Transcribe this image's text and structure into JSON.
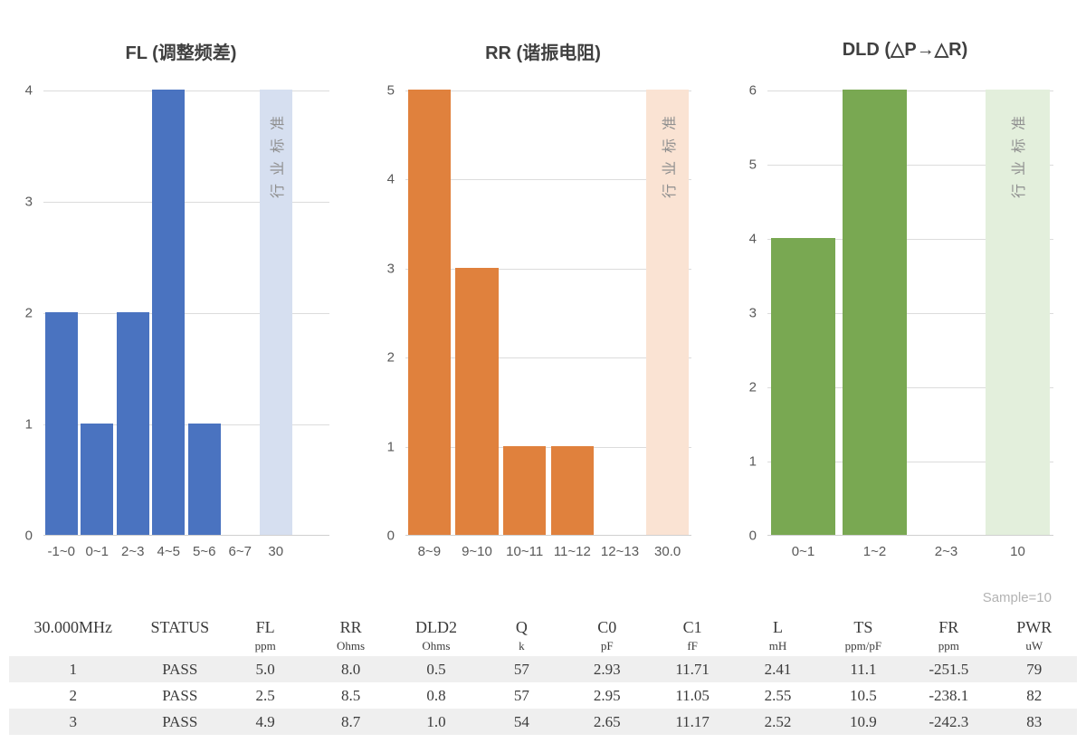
{
  "chart_data": [
    {
      "type": "bar",
      "title": "FL (调整频差)",
      "categories": [
        "-1~0",
        "0~1",
        "2~3",
        "4~5",
        "5~6",
        "6~7",
        "30"
      ],
      "values": [
        2,
        1,
        2,
        4,
        1,
        0,
        4
      ],
      "ylim": [
        0,
        4
      ],
      "ytick_step": 1,
      "grid": true,
      "legend": "none",
      "bar_color": "#4A73C0",
      "standard": {
        "index": 6,
        "label": "行业标准",
        "color": "#D6DFF0"
      },
      "extra_slots": 1
    },
    {
      "type": "bar",
      "title": "RR (谐振电阻)",
      "categories": [
        "8~9",
        "9~10",
        "10~11",
        "11~12",
        "12~13",
        "30.0"
      ],
      "values": [
        5,
        3,
        1,
        1,
        0,
        5
      ],
      "ylim": [
        0,
        5
      ],
      "ytick_step": 1,
      "grid": true,
      "legend": "none",
      "bar_color": "#E0813D",
      "standard": {
        "index": 5,
        "label": "行业标准",
        "color": "#FAE3D3"
      },
      "extra_slots": 0
    },
    {
      "type": "bar",
      "title": "DLD (△P→△R)",
      "categories": [
        "0~1",
        "1~2",
        "2~3",
        "10"
      ],
      "values": [
        4,
        6,
        0,
        6
      ],
      "ylim": [
        0,
        6
      ],
      "ytick_step": 1,
      "grid": true,
      "legend": "none",
      "bar_color": "#79A852",
      "standard": {
        "index": 3,
        "label": "行业标准",
        "color": "#E3EFDC"
      },
      "extra_slots": 0
    }
  ],
  "table": {
    "sample_label": "Sample=10",
    "columns": [
      {
        "header": "30.000MHz",
        "unit": ""
      },
      {
        "header": "STATUS",
        "unit": ""
      },
      {
        "header": "FL",
        "unit": "ppm"
      },
      {
        "header": "RR",
        "unit": "Ohms"
      },
      {
        "header": "DLD2",
        "unit": "Ohms"
      },
      {
        "header": "Q",
        "unit": "k"
      },
      {
        "header": "C0",
        "unit": "pF"
      },
      {
        "header": "C1",
        "unit": "fF"
      },
      {
        "header": "L",
        "unit": "mH"
      },
      {
        "header": "TS",
        "unit": "ppm/pF"
      },
      {
        "header": "FR",
        "unit": "ppm"
      },
      {
        "header": "PWR",
        "unit": "uW"
      }
    ],
    "rows": [
      [
        "1",
        "PASS",
        "5.0",
        "8.0",
        "0.5",
        "57",
        "2.93",
        "11.71",
        "2.41",
        "11.1",
        "-251.5",
        "79"
      ],
      [
        "2",
        "PASS",
        "2.5",
        "8.5",
        "0.8",
        "57",
        "2.95",
        "11.05",
        "2.55",
        "10.5",
        "-238.1",
        "82"
      ],
      [
        "3",
        "PASS",
        "4.9",
        "8.7",
        "1.0",
        "54",
        "2.65",
        "11.17",
        "2.52",
        "10.9",
        "-242.3",
        "83"
      ]
    ]
  },
  "colors": {
    "gridline": "#DCDCDC",
    "axis": "#D0D0D0",
    "tick_text": "#595959",
    "title_text": "#404040",
    "standard_text": "#8F8F8F",
    "sample_text": "#B3B3B3",
    "stripe": "#EFEFEF",
    "table_text": "#3B3B3B"
  }
}
